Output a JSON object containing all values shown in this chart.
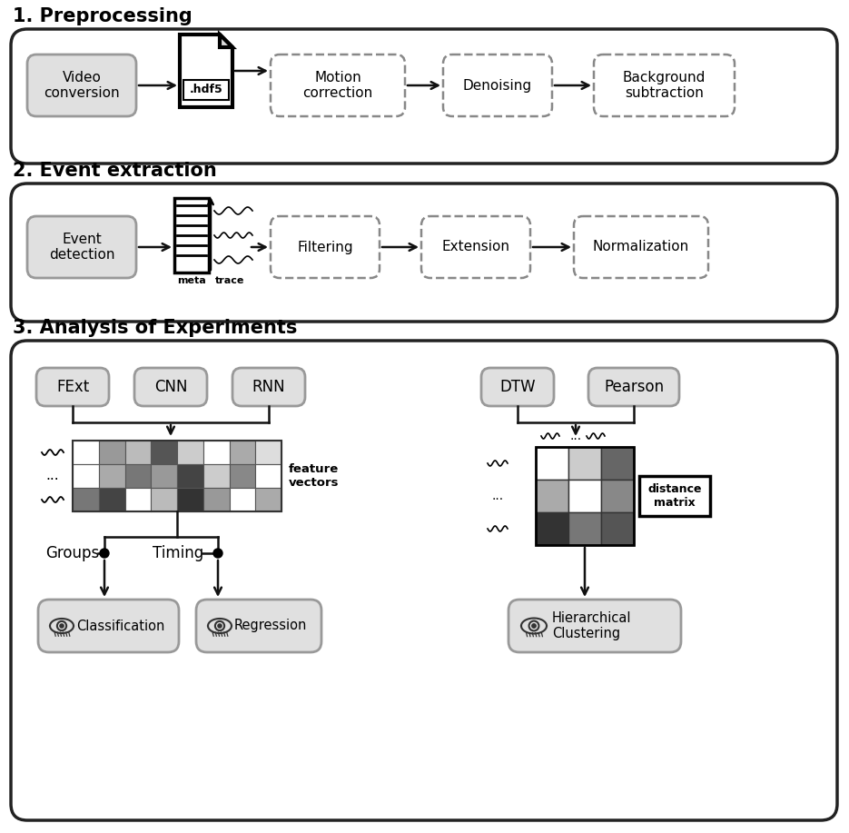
{
  "bg_color": "#ffffff",
  "section_bg": "#ffffff",
  "section_border": "#222222",
  "solid_box_bg": "#e0e0e0",
  "solid_box_border": "#888888",
  "dashed_box_bg": "#ffffff",
  "dashed_box_border": "#888888",
  "section_titles": [
    "1. Preprocessing",
    "2. Event extraction",
    "3. Analysis of Experiments"
  ],
  "preprocessing_boxes": [
    "Video\nconversion",
    "Motion\ncorrection",
    "Denoising",
    "Background\nsubtraction"
  ],
  "event_boxes": [
    "Event\ndetection",
    "Filtering",
    "Extension",
    "Normalization"
  ],
  "analysis_left_top": [
    "FExt",
    "CNN",
    "RNN"
  ],
  "analysis_right_top": [
    "DTW",
    "Pearson"
  ],
  "analysis_bottom_left": [
    "Classification",
    "Regression"
  ],
  "analysis_bottom_right": "Hierarchical\nClustering",
  "feature_row_colors": [
    [
      "#ffffff",
      "#999999",
      "#bbbbbb",
      "#555555",
      "#cccccc",
      "#ffffff",
      "#aaaaaa",
      "#dddddd"
    ],
    [
      "#ffffff",
      "#aaaaaa",
      "#777777",
      "#999999",
      "#444444",
      "#cccccc",
      "#888888",
      "#ffffff"
    ],
    [
      "#777777",
      "#444444",
      "#ffffff",
      "#bbbbbb",
      "#333333",
      "#999999",
      "#ffffff",
      "#aaaaaa"
    ]
  ],
  "matrix_colors": [
    [
      "#ffffff",
      "#cccccc",
      "#666666"
    ],
    [
      "#aaaaaa",
      "#ffffff",
      "#888888"
    ],
    [
      "#333333",
      "#777777",
      "#555555"
    ]
  ]
}
